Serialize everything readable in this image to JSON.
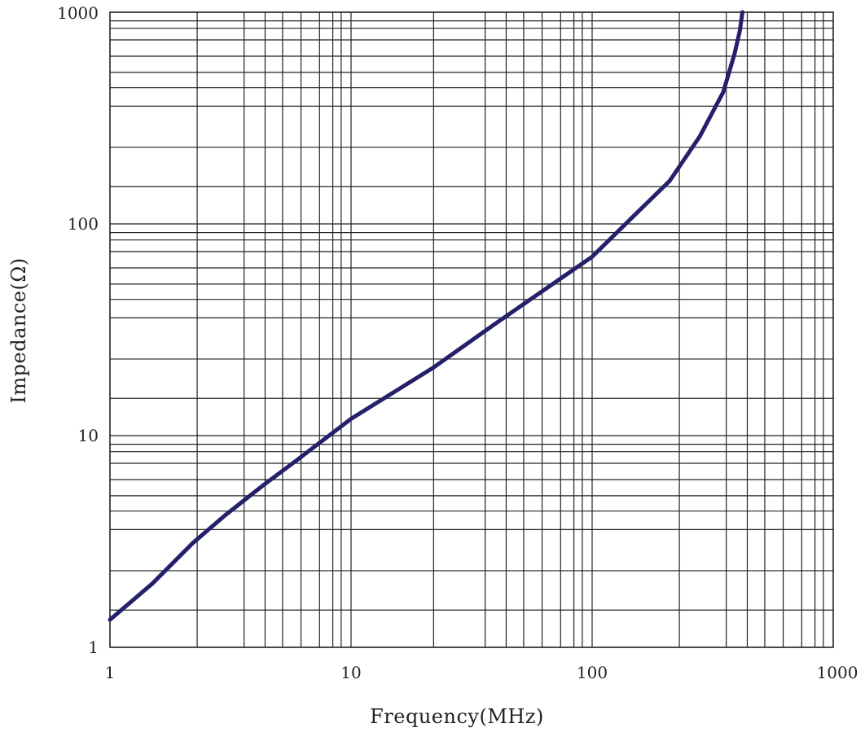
{
  "chart_data": {
    "type": "line",
    "title": "",
    "xlabel": "Frequency(MHz)",
    "ylabel": "Impedance(Ω)",
    "x_scale": "log",
    "y_scale": "log",
    "xlim": [
      1,
      1000
    ],
    "ylim": [
      1,
      1000
    ],
    "grid": true,
    "x_ticks": [
      "1",
      "10",
      "100",
      "1000"
    ],
    "y_ticks": [
      "1",
      "10",
      "100",
      "1000"
    ],
    "x_grid_values": [
      1,
      2.3,
      3.6,
      4.4,
      5.2,
      6.2,
      7.4,
      8.4,
      9.1,
      10,
      22,
      36,
      44,
      52,
      62,
      74,
      84,
      91,
      100,
      230,
      360,
      440,
      520,
      620,
      740,
      840,
      910,
      1000
    ],
    "y_grid_values": [
      1,
      1.5,
      2.3,
      3.6,
      4.4,
      5.2,
      6.2,
      7.4,
      8.4,
      9.1,
      10,
      15,
      23,
      36,
      44,
      52,
      62,
      74,
      84,
      91,
      100,
      150,
      230,
      360,
      440,
      520,
      620,
      740,
      840,
      910,
      1000
    ],
    "series": [
      {
        "color": "#24206b",
        "x": [
          1,
          1.5,
          2.2,
          3,
          4.3,
          6,
          10,
          22,
          40,
          100,
          150,
          210,
          280,
          350,
          390,
          410,
          420
        ],
        "y": [
          1.35,
          2.0,
          3.1,
          4.2,
          5.8,
          7.7,
          12,
          21,
          34,
          70,
          110,
          160,
          260,
          420,
          640,
          820,
          1000
        ]
      }
    ]
  }
}
